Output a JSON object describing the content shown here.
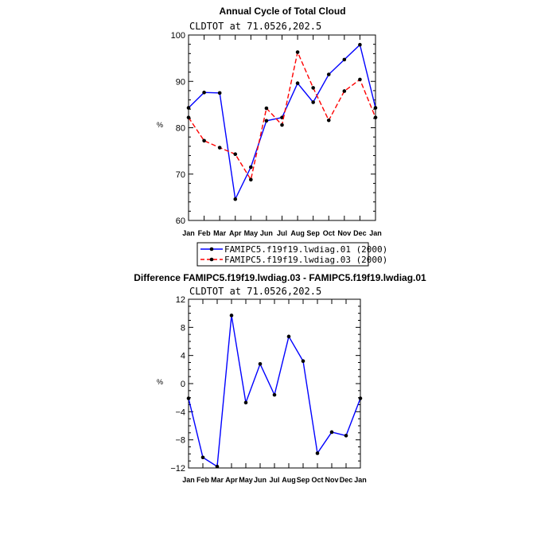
{
  "chart_data": [
    {
      "type": "line",
      "title": "Annual Cycle of Total Cloud",
      "subtitle": "CLDTOT at 71.0526,202.5",
      "ylabel": "%",
      "xlabel": "",
      "ylim": [
        60,
        100
      ],
      "yticks": [
        60,
        70,
        80,
        90,
        100
      ],
      "categories": [
        "Jan",
        "Feb",
        "Mar",
        "Apr",
        "May",
        "Jun",
        "Jul",
        "Aug",
        "Sep",
        "Oct",
        "Nov",
        "Dec",
        "Jan"
      ],
      "series": [
        {
          "name": "FAMIPC5.f19f19.lwdiag.01 (2000)",
          "color": "#0000ff",
          "dash": "solid",
          "values": [
            84.3,
            87.6,
            87.5,
            64.6,
            71.5,
            81.5,
            82.2,
            89.6,
            85.5,
            91.5,
            94.7,
            97.9,
            84.3
          ]
        },
        {
          "name": "FAMIPC5.f19f19.lwdiag.03 (2000)",
          "color": "#ff0000",
          "dash": "dashed",
          "values": [
            82.2,
            77.2,
            75.7,
            74.3,
            68.8,
            84.2,
            80.6,
            96.3,
            88.6,
            81.6,
            87.9,
            90.4,
            82.2
          ]
        }
      ],
      "legend": "bottom"
    },
    {
      "type": "line",
      "title": "Difference FAMIPC5.f19f19.lwdiag.03 - FAMIPC5.f19f19.lwdiag.01",
      "subtitle": "CLDTOT at 71.0526,202.5",
      "ylabel": "%",
      "xlabel": "",
      "ylim": [
        -12,
        12
      ],
      "yticks": [
        -12,
        -8,
        -4,
        0,
        4,
        8,
        12
      ],
      "categories": [
        "Jan",
        "Feb",
        "Mar",
        "Apr",
        "May",
        "Jun",
        "Jul",
        "Aug",
        "Sep",
        "Oct",
        "Nov",
        "Dec",
        "Jan"
      ],
      "series": [
        {
          "name": "difference",
          "color": "#0000ff",
          "dash": "solid",
          "values": [
            -2.1,
            -10.5,
            -11.8,
            9.7,
            -2.7,
            2.8,
            -1.6,
            6.7,
            3.2,
            -9.9,
            -6.9,
            -7.4,
            -2.1
          ]
        }
      ]
    }
  ]
}
